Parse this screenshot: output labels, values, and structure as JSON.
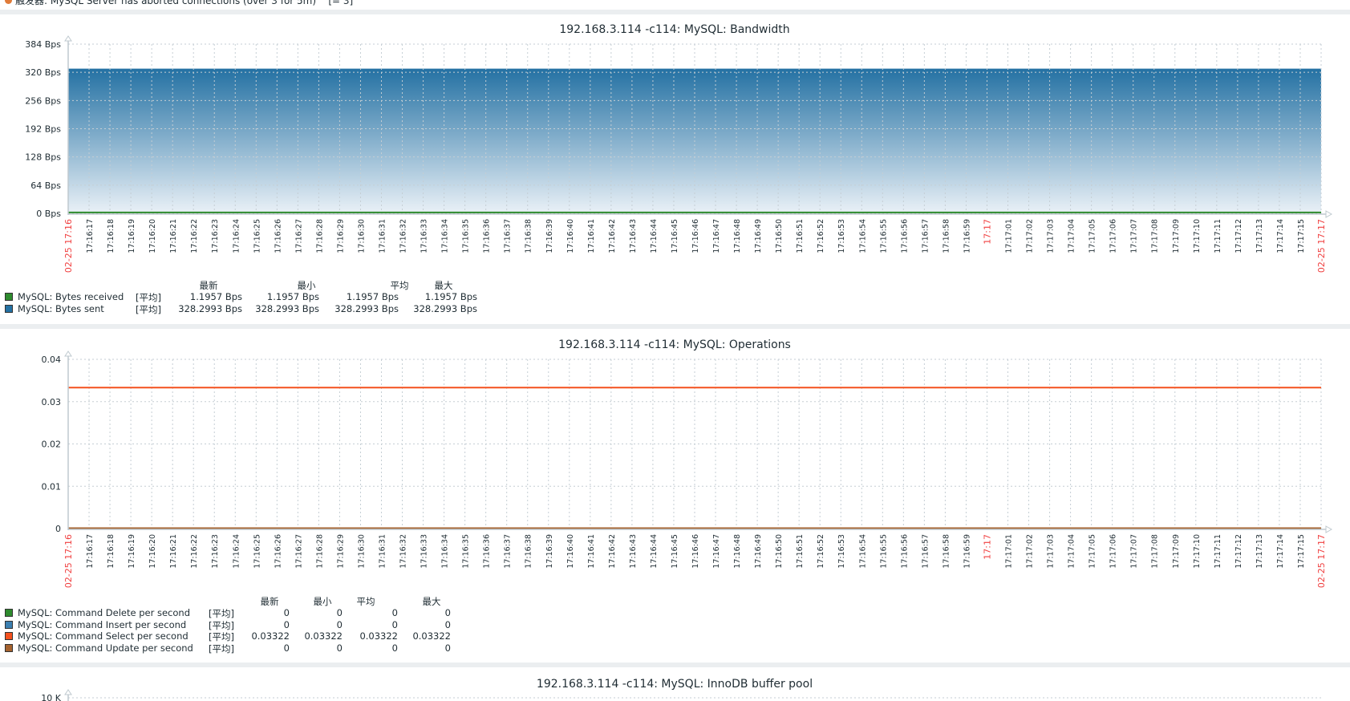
{
  "trigger": {
    "text": "触发器: MySQL Server has aborted connections (over 3 for 5m)",
    "suffix": "[= 3]"
  },
  "legend_headers": [
    "最新",
    "最小",
    "平均",
    "最大"
  ],
  "chart_data": [
    {
      "type": "area",
      "title": "192.168.3.114 -c114: MySQL: Bandwidth",
      "ylim": [
        0,
        384
      ],
      "y_ticks": [
        {
          "v": 0,
          "label": "0 Bps"
        },
        {
          "v": 64,
          "label": "64 Bps"
        },
        {
          "v": 128,
          "label": "128 Bps"
        },
        {
          "v": 192,
          "label": "192 Bps"
        },
        {
          "v": 256,
          "label": "256 Bps"
        },
        {
          "v": 320,
          "label": "320 Bps"
        },
        {
          "v": 384,
          "label": "384 Bps"
        }
      ],
      "x_ticks": [
        "02-25 17:16",
        "17:16:17",
        "17:16:18",
        "17:16:19",
        "17:16:20",
        "17:16:21",
        "17:16:22",
        "17:16:23",
        "17:16:24",
        "17:16:25",
        "17:16:26",
        "17:16:27",
        "17:16:28",
        "17:16:29",
        "17:16:30",
        "17:16:31",
        "17:16:32",
        "17:16:33",
        "17:16:34",
        "17:16:35",
        "17:16:36",
        "17:16:37",
        "17:16:38",
        "17:16:39",
        "17:16:40",
        "17:16:41",
        "17:16:42",
        "17:16:43",
        "17:16:44",
        "17:16:45",
        "17:16:46",
        "17:16:47",
        "17:16:48",
        "17:16:49",
        "17:16:50",
        "17:16:51",
        "17:16:52",
        "17:16:53",
        "17:16:54",
        "17:16:55",
        "17:16:56",
        "17:16:57",
        "17:16:58",
        "17:16:59",
        "17:17",
        "17:17:01",
        "17:17:02",
        "17:17:03",
        "17:17:04",
        "17:17:05",
        "17:17:06",
        "17:17:07",
        "17:17:08",
        "17:17:09",
        "17:17:10",
        "17:17:11",
        "17:17:12",
        "17:17:13",
        "17:17:14",
        "17:17:15",
        "02-25 17:17"
      ],
      "highlight_ticks": [
        0,
        44,
        60
      ],
      "grid": true,
      "series": [
        {
          "name": "MySQL: Bytes received",
          "func": "[平均]",
          "color": "#2e8b2e",
          "style": "line",
          "value": 1.1957,
          "stats": [
            "1.1957 Bps",
            "1.1957 Bps",
            "1.1957 Bps",
            "1.1957 Bps"
          ]
        },
        {
          "name": "MySQL: Bytes sent",
          "func": "[平均]",
          "color": "#2471a3",
          "style": "gradient-area",
          "value": 328.2993,
          "stats": [
            "328.2993 Bps",
            "328.2993 Bps",
            "328.2993 Bps",
            "328.2993 Bps"
          ]
        }
      ]
    },
    {
      "type": "line",
      "title": "192.168.3.114 -c114: MySQL: Operations",
      "ylim": [
        0,
        0.04
      ],
      "y_ticks": [
        {
          "v": 0,
          "label": "0"
        },
        {
          "v": 0.01,
          "label": "0.01"
        },
        {
          "v": 0.02,
          "label": "0.02"
        },
        {
          "v": 0.03,
          "label": "0.03"
        },
        {
          "v": 0.04,
          "label": "0.04"
        }
      ],
      "x_ticks_same_as_previous": true,
      "grid": true,
      "series": [
        {
          "name": "MySQL: Command Delete per second",
          "func": "[平均]",
          "color": "#2e8b2e",
          "value": 0,
          "stats": [
            "0",
            "0",
            "0",
            "0"
          ]
        },
        {
          "name": "MySQL: Command Insert per second",
          "func": "[平均]",
          "color": "#3b7fb0",
          "value": 0,
          "stats": [
            "0",
            "0",
            "0",
            "0"
          ]
        },
        {
          "name": "MySQL: Command Select per second",
          "func": "[平均]",
          "color": "#f4511e",
          "value": 0.03322,
          "stats": [
            "0.03322",
            "0.03322",
            "0.03322",
            "0.03322"
          ]
        },
        {
          "name": "MySQL: Command Update per second",
          "func": "[平均]",
          "color": "#a5622e",
          "value": 0,
          "stats": [
            "0",
            "0",
            "0",
            "0"
          ]
        }
      ]
    },
    {
      "type": "line",
      "title": "192.168.3.114 -c114: MySQL: InnoDB buffer pool",
      "y_ticks": [
        {
          "label": "10 K"
        }
      ]
    }
  ]
}
